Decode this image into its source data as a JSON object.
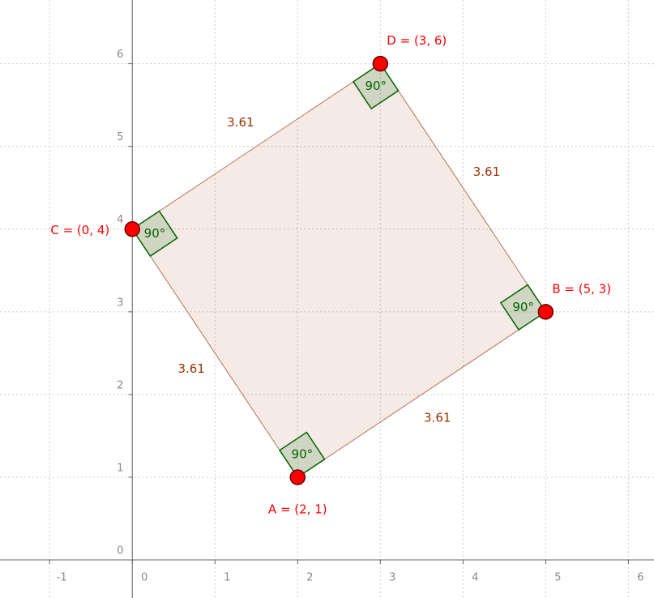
{
  "axes": {
    "xlim": [
      -1.6,
      6.31
    ],
    "ylim": [
      -0.46,
      6.77
    ],
    "xticks": [
      -1,
      0,
      1,
      2,
      3,
      4,
      5,
      6
    ],
    "yticks": [
      0,
      1,
      2,
      3,
      4,
      5,
      6
    ],
    "grid": true
  },
  "points": [
    {
      "label": "A = (2, 1)",
      "x": 2,
      "y": 1
    },
    {
      "label": "B = (5, 3)",
      "x": 5,
      "y": 3
    },
    {
      "label": "D = (3, 6)",
      "x": 3,
      "y": 6
    },
    {
      "label": "C = (0, 4)",
      "x": 0,
      "y": 4
    }
  ],
  "sides": [
    "3.61",
    "3.61",
    "3.61",
    "3.61"
  ],
  "angles": [
    "90°",
    "90°",
    "90°",
    "90°"
  ]
}
